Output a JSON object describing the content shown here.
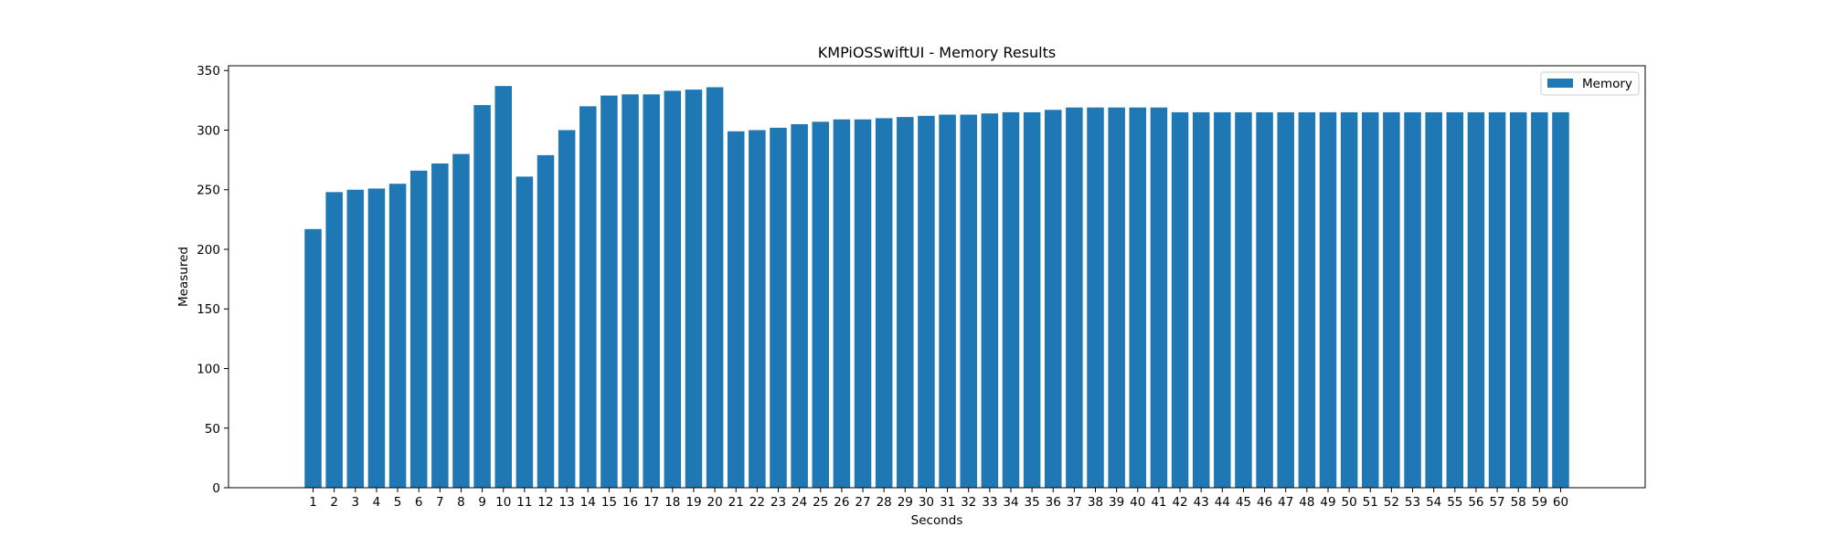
{
  "chart_data": {
    "type": "bar",
    "title": "KMPiOSSwiftUI - Memory Results",
    "xlabel": "Seconds",
    "ylabel": "Measured",
    "ylim": [
      0,
      354
    ],
    "y_ticks": [
      0,
      50,
      100,
      150,
      200,
      250,
      300,
      350
    ],
    "grid": false,
    "legend_position": "top-right",
    "bar_color": "#1f77b4",
    "categories": [
      "1",
      "2",
      "3",
      "4",
      "5",
      "6",
      "7",
      "8",
      "9",
      "10",
      "11",
      "12",
      "13",
      "14",
      "15",
      "16",
      "17",
      "18",
      "19",
      "20",
      "21",
      "22",
      "23",
      "24",
      "25",
      "26",
      "27",
      "28",
      "29",
      "30",
      "31",
      "32",
      "33",
      "34",
      "35",
      "36",
      "37",
      "38",
      "39",
      "40",
      "41",
      "42",
      "43",
      "44",
      "45",
      "46",
      "47",
      "48",
      "49",
      "50",
      "51",
      "52",
      "53",
      "54",
      "55",
      "56",
      "57",
      "58",
      "59",
      "60"
    ],
    "series": [
      {
        "name": "Memory",
        "values": [
          217,
          248,
          250,
          251,
          255,
          266,
          272,
          280,
          321,
          337,
          261,
          279,
          300,
          320,
          329,
          330,
          330,
          333,
          334,
          336,
          299,
          300,
          302,
          305,
          307,
          309,
          309,
          310,
          311,
          312,
          313,
          313,
          314,
          315,
          315,
          317,
          319,
          319,
          319,
          319,
          319,
          315,
          315,
          315,
          315,
          315,
          315,
          315,
          315,
          315,
          315,
          315,
          315,
          315,
          315,
          315,
          315,
          315,
          315,
          315
        ]
      }
    ]
  }
}
